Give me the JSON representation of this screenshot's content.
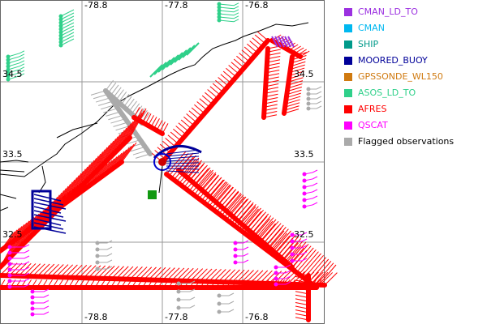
{
  "map": {
    "lon_lines": [
      -78.8,
      -77.8,
      -76.8
    ],
    "lat_lines": [
      34.5,
      33.5,
      32.5
    ],
    "legend": [
      {
        "name": "CMAN_LD_TO",
        "color": "#9b30e0"
      },
      {
        "name": "CMAN",
        "color": "#00b8f0"
      },
      {
        "name": "SHIP",
        "color": "#009a8a"
      },
      {
        "name": "MOORED_BUOY",
        "color": "#000099"
      },
      {
        "name": "GPSSONDE_WL150",
        "color": "#d07a10"
      },
      {
        "name": "ASOS_LD_TO",
        "color": "#2fd08a"
      },
      {
        "name": "AFRES",
        "color": "#ff0000"
      },
      {
        "name": "QSCAT",
        "color": "#ff00ff"
      },
      {
        "name": "Flagged observations",
        "color": "#aaaaaa"
      }
    ]
  }
}
